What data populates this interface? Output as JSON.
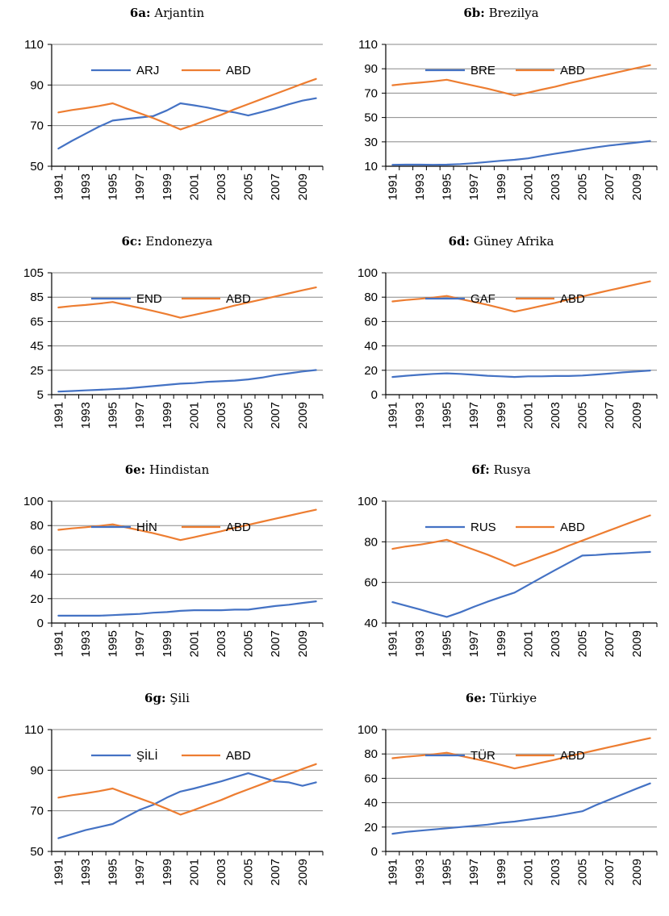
{
  "colors": {
    "country": "#4472C4",
    "usa": "#ED7D31",
    "grid": "#898989",
    "axis": "#000000"
  },
  "chart_data": [
    {
      "type": "line",
      "title_bold": "6a:",
      "title": "Arjantin",
      "x": [
        1991,
        1992,
        1993,
        1994,
        1995,
        1996,
        1997,
        1998,
        1999,
        2000,
        2001,
        2002,
        2003,
        2004,
        2005,
        2006,
        2007,
        2008,
        2009,
        2010
      ],
      "x_tick_labels": [
        "1991",
        "1993",
        "1995",
        "1997",
        "1999",
        "2001",
        "2003",
        "2005",
        "2007",
        "2009"
      ],
      "ylim": [
        50,
        110
      ],
      "yticks": [
        50,
        70,
        90,
        110
      ],
      "legend_position": "top-center",
      "grid": true,
      "series": [
        {
          "name": "ARJ",
          "role": "country",
          "values": [
            58.7,
            62.5,
            66.0,
            69.5,
            72.5,
            73.3,
            74.0,
            74.7,
            77.5,
            81.0,
            80.0,
            78.9,
            77.5,
            76.5,
            75.0,
            76.7,
            78.5,
            80.5,
            82.3,
            83.5
          ]
        },
        {
          "name": "ABD",
          "role": "usa",
          "values": [
            76.5,
            77.7,
            78.6,
            79.7,
            81.0,
            78.5,
            76.1,
            73.7,
            71.0,
            68.1,
            70.4,
            72.9,
            75.3,
            78.1,
            80.6,
            83.1,
            85.6,
            88.1,
            90.6,
            93.0
          ]
        }
      ]
    },
    {
      "type": "line",
      "title_bold": "6b:",
      "title": "Brezilya",
      "x": [
        1991,
        1992,
        1993,
        1994,
        1995,
        1996,
        1997,
        1998,
        1999,
        2000,
        2001,
        2002,
        2003,
        2004,
        2005,
        2006,
        2007,
        2008,
        2009,
        2010
      ],
      "x_tick_labels": [
        "1991",
        "1993",
        "1995",
        "1997",
        "1999",
        "2001",
        "2003",
        "2005",
        "2007",
        "2009"
      ],
      "ylim": [
        10,
        110
      ],
      "yticks": [
        10,
        30,
        50,
        70,
        90,
        110
      ],
      "legend_position": "top-center",
      "grid": true,
      "series": [
        {
          "name": "BRE",
          "role": "country",
          "values": [
            11.2,
            11.3,
            11.3,
            11.2,
            11.3,
            11.8,
            12.5,
            13.5,
            14.5,
            15.3,
            16.5,
            18.5,
            20.3,
            22.0,
            23.8,
            25.5,
            27.0,
            28.2,
            29.5,
            30.7
          ]
        },
        {
          "name": "ABD",
          "role": "usa",
          "values": [
            76.5,
            77.7,
            78.6,
            79.7,
            81.0,
            78.5,
            76.1,
            73.7,
            71.0,
            68.1,
            70.4,
            72.9,
            75.3,
            78.1,
            80.6,
            83.1,
            85.6,
            88.1,
            90.6,
            93.0
          ]
        }
      ]
    },
    {
      "type": "line",
      "title_bold": "6c:",
      "title": "Endonezya",
      "x": [
        1991,
        1992,
        1993,
        1994,
        1995,
        1996,
        1997,
        1998,
        1999,
        2000,
        2001,
        2002,
        2003,
        2004,
        2005,
        2006,
        2007,
        2008,
        2009,
        2010
      ],
      "x_tick_labels": [
        "1991",
        "1993",
        "1995",
        "1997",
        "1999",
        "2001",
        "2003",
        "2005",
        "2007",
        "2009"
      ],
      "ylim": [
        5,
        105
      ],
      "yticks": [
        5,
        25,
        45,
        65,
        85,
        105
      ],
      "legend_position": "top-center",
      "grid": true,
      "series": [
        {
          "name": "END",
          "role": "country",
          "values": [
            7.5,
            8.0,
            8.5,
            9.0,
            9.5,
            10.0,
            11.0,
            12.0,
            13.0,
            14.0,
            14.5,
            15.5,
            16.0,
            16.5,
            17.5,
            19.0,
            21.0,
            22.5,
            24.0,
            25.2
          ]
        },
        {
          "name": "ABD",
          "role": "usa",
          "values": [
            76.5,
            77.7,
            78.6,
            79.7,
            81.0,
            78.5,
            76.1,
            73.7,
            71.0,
            68.1,
            70.4,
            72.9,
            75.3,
            78.1,
            80.6,
            83.1,
            85.6,
            88.1,
            90.6,
            93.0
          ]
        }
      ]
    },
    {
      "type": "line",
      "title_bold": "6d:",
      "title": "Güney Afrika",
      "x": [
        1991,
        1992,
        1993,
        1994,
        1995,
        1996,
        1997,
        1998,
        1999,
        2000,
        2001,
        2002,
        2003,
        2004,
        2005,
        2006,
        2007,
        2008,
        2009,
        2010
      ],
      "x_tick_labels": [
        "1991",
        "1993",
        "1995",
        "1997",
        "1999",
        "2001",
        "2003",
        "2005",
        "2007",
        "2009"
      ],
      "ylim": [
        0,
        100
      ],
      "yticks": [
        0,
        20,
        40,
        60,
        80,
        100
      ],
      "legend_position": "top-center",
      "grid": true,
      "series": [
        {
          "name": "GAF",
          "role": "country",
          "values": [
            14.5,
            15.5,
            16.3,
            17.0,
            17.5,
            17.0,
            16.3,
            15.5,
            15.0,
            14.5,
            15.0,
            15.0,
            15.3,
            15.3,
            15.7,
            16.5,
            17.3,
            18.3,
            19.0,
            19.8
          ]
        },
        {
          "name": "ABD",
          "role": "usa",
          "values": [
            76.5,
            77.7,
            78.6,
            79.7,
            81.0,
            78.5,
            76.1,
            73.7,
            71.0,
            68.1,
            70.4,
            72.9,
            75.3,
            78.1,
            80.6,
            83.1,
            85.6,
            88.1,
            90.6,
            93.0
          ]
        }
      ]
    },
    {
      "type": "line",
      "title_bold": "6e:",
      "title": "Hindistan",
      "x": [
        1991,
        1992,
        1993,
        1994,
        1995,
        1996,
        1997,
        1998,
        1999,
        2000,
        2001,
        2002,
        2003,
        2004,
        2005,
        2006,
        2007,
        2008,
        2009,
        2010
      ],
      "x_tick_labels": [
        "1991",
        "1993",
        "1995",
        "1997",
        "1999",
        "2001",
        "2003",
        "2005",
        "2007",
        "2009"
      ],
      "ylim": [
        0,
        100
      ],
      "yticks": [
        0,
        20,
        40,
        60,
        80,
        100
      ],
      "legend_position": "top-center",
      "grid": true,
      "series": [
        {
          "name": "HİN",
          "role": "country",
          "values": [
            6.0,
            6.0,
            6.0,
            6.0,
            6.5,
            7.0,
            7.5,
            8.5,
            9.0,
            10.0,
            10.5,
            10.5,
            10.5,
            11.0,
            11.0,
            12.5,
            14.0,
            15.0,
            16.5,
            17.8
          ]
        },
        {
          "name": "ABD",
          "role": "usa",
          "values": [
            76.5,
            77.7,
            78.6,
            79.7,
            81.0,
            78.5,
            76.1,
            73.7,
            71.0,
            68.1,
            70.4,
            72.9,
            75.3,
            78.1,
            80.6,
            83.1,
            85.6,
            88.1,
            90.6,
            93.0
          ]
        }
      ]
    },
    {
      "type": "line",
      "title_bold": "6f:",
      "title": "Rusya",
      "x": [
        1991,
        1992,
        1993,
        1994,
        1995,
        1996,
        1997,
        1998,
        1999,
        2000,
        2001,
        2002,
        2003,
        2004,
        2005,
        2006,
        2007,
        2008,
        2009,
        2010
      ],
      "x_tick_labels": [
        "1991",
        "1993",
        "1995",
        "1997",
        "1999",
        "2001",
        "2003",
        "2005",
        "2007",
        "2009"
      ],
      "ylim": [
        40,
        100
      ],
      "yticks": [
        40,
        60,
        80,
        100
      ],
      "legend_position": "top-center",
      "grid": true,
      "series": [
        {
          "name": "RUS",
          "role": "country",
          "values": [
            50.3,
            48.5,
            46.7,
            44.8,
            43.0,
            45.3,
            48.0,
            50.5,
            52.8,
            55.0,
            58.7,
            62.4,
            66.1,
            69.7,
            73.2,
            73.5,
            74.0,
            74.3,
            74.7,
            75.0
          ]
        },
        {
          "name": "ABD",
          "role": "usa",
          "values": [
            76.5,
            77.7,
            78.6,
            79.7,
            81.0,
            78.5,
            76.1,
            73.7,
            71.0,
            68.1,
            70.4,
            72.9,
            75.3,
            78.1,
            80.6,
            83.1,
            85.6,
            88.1,
            90.6,
            93.0
          ]
        }
      ]
    },
    {
      "type": "line",
      "title_bold": "6g:",
      "title": "Şili",
      "x": [
        1991,
        1992,
        1993,
        1994,
        1995,
        1996,
        1997,
        1998,
        1999,
        2000,
        2001,
        2002,
        2003,
        2004,
        2005,
        2006,
        2007,
        2008,
        2009,
        2010
      ],
      "x_tick_labels": [
        "1991",
        "1993",
        "1995",
        "1997",
        "1999",
        "2001",
        "2003",
        "2005",
        "2007",
        "2009"
      ],
      "ylim": [
        50,
        110
      ],
      "yticks": [
        50,
        70,
        90,
        110
      ],
      "legend_position": "top-center",
      "grid": true,
      "series": [
        {
          "name": "ŞİLİ",
          "role": "country",
          "values": [
            56.5,
            58.5,
            60.5,
            62.0,
            63.5,
            67.0,
            70.5,
            73.0,
            76.5,
            79.5,
            81.0,
            82.8,
            84.5,
            86.5,
            88.5,
            86.5,
            84.5,
            84.0,
            82.3,
            84.0
          ]
        },
        {
          "name": "ABD",
          "role": "usa",
          "values": [
            76.5,
            77.7,
            78.6,
            79.7,
            81.0,
            78.5,
            76.1,
            73.7,
            71.0,
            68.1,
            70.4,
            72.9,
            75.3,
            78.1,
            80.6,
            83.1,
            85.6,
            88.1,
            90.6,
            93.0
          ]
        }
      ]
    },
    {
      "type": "line",
      "title_bold": "6e:",
      "title": "Türkiye",
      "x": [
        1991,
        1992,
        1993,
        1994,
        1995,
        1996,
        1997,
        1998,
        1999,
        2000,
        2001,
        2002,
        2003,
        2004,
        2005,
        2006,
        2007,
        2008,
        2009,
        2010
      ],
      "x_tick_labels": [
        "1991",
        "1993",
        "1995",
        "1997",
        "1999",
        "2001",
        "2003",
        "2005",
        "2007",
        "2009"
      ],
      "ylim": [
        0,
        100
      ],
      "yticks": [
        0,
        20,
        40,
        60,
        80,
        100
      ],
      "legend_position": "top-center",
      "grid": true,
      "series": [
        {
          "name": "TÜR",
          "role": "country",
          "values": [
            14.5,
            16.0,
            17.0,
            18.0,
            19.0,
            20.0,
            21.0,
            22.0,
            23.5,
            24.5,
            26.0,
            27.5,
            29.0,
            31.0,
            33.0,
            38.0,
            42.5,
            47.0,
            51.5,
            55.8
          ]
        },
        {
          "name": "ABD",
          "role": "usa",
          "values": [
            76.5,
            77.7,
            78.6,
            79.7,
            81.0,
            78.5,
            76.1,
            73.7,
            71.0,
            68.1,
            70.4,
            72.9,
            75.3,
            78.1,
            80.6,
            83.1,
            85.6,
            88.1,
            90.6,
            93.0
          ]
        }
      ]
    }
  ]
}
